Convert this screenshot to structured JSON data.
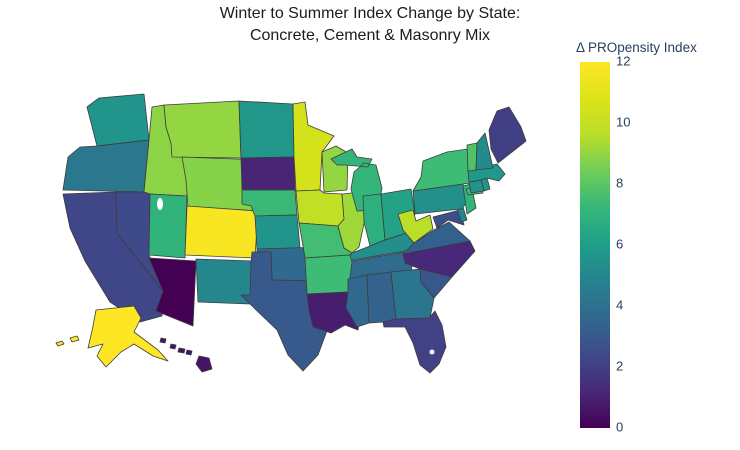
{
  "title": {
    "line1": "Winter to Summer Index Change by State:",
    "line2": "Concrete, Cement & Masonry Mix"
  },
  "colors": {
    "title_text": "#1c1c1c",
    "colorbar_text": "#2a3f5f",
    "state_border": "#3d3d3d",
    "background": "#ffffff"
  },
  "chart_data": {
    "type": "choropleth",
    "region": "USA states (albers projection, AK and HI insets)",
    "colorbar": {
      "title": "Δ PROpensity Index",
      "min": 0,
      "max": 12,
      "ticks": [
        "0",
        "2",
        "4",
        "6",
        "8",
        "10",
        "12"
      ]
    },
    "colorscale_name": "viridis",
    "colorscale": [
      "#440154",
      "#482878",
      "#3e4a89",
      "#31688e",
      "#26828e",
      "#1f9e89",
      "#35b779",
      "#6dcd59",
      "#b8de29",
      "#dde318",
      "#fde725"
    ],
    "states": [
      {
        "abbr": "AL",
        "name": "Alabama",
        "value": 3.4
      },
      {
        "abbr": "AK",
        "name": "Alaska",
        "value": 12
      },
      {
        "abbr": "AZ",
        "name": "Arizona",
        "value": 0
      },
      {
        "abbr": "AR",
        "name": "Arkansas",
        "value": 7.4
      },
      {
        "abbr": "CA",
        "name": "California",
        "value": 2.3
      },
      {
        "abbr": "CO",
        "name": "Colorado",
        "value": 11.8
      },
      {
        "abbr": "CT",
        "name": "Connecticut",
        "value": 5.5
      },
      {
        "abbr": "DE",
        "name": "Delaware",
        "value": 4.8
      },
      {
        "abbr": "FL",
        "name": "Florida",
        "value": 2.1
      },
      {
        "abbr": "GA",
        "name": "Georgia",
        "value": 4.2
      },
      {
        "abbr": "HI",
        "name": "Hawaii",
        "value": 0.6
      },
      {
        "abbr": "ID",
        "name": "Idaho",
        "value": 8.9
      },
      {
        "abbr": "IL",
        "name": "Illinois",
        "value": 9.2
      },
      {
        "abbr": "IN",
        "name": "Indiana",
        "value": 6.8
      },
      {
        "abbr": "IA",
        "name": "Iowa",
        "value": 9.9
      },
      {
        "abbr": "KS",
        "name": "Kansas",
        "value": 5.6
      },
      {
        "abbr": "KY",
        "name": "Kentucky",
        "value": 5.3
      },
      {
        "abbr": "LA",
        "name": "Louisiana",
        "value": 0.9
      },
      {
        "abbr": "ME",
        "name": "Maine",
        "value": 2.0
      },
      {
        "abbr": "MD",
        "name": "Maryland",
        "value": 2.6
      },
      {
        "abbr": "MA",
        "name": "Massachusetts",
        "value": 5.8
      },
      {
        "abbr": "MI",
        "name": "Michigan",
        "value": 7.1
      },
      {
        "abbr": "MN",
        "name": "Minnesota",
        "value": 10.5
      },
      {
        "abbr": "MS",
        "name": "Mississippi",
        "value": 3.6
      },
      {
        "abbr": "MO",
        "name": "Missouri",
        "value": 7.5
      },
      {
        "abbr": "MT",
        "name": "Montana",
        "value": 9.0
      },
      {
        "abbr": "NE",
        "name": "Nebraska",
        "value": 7.3
      },
      {
        "abbr": "NV",
        "name": "Nevada",
        "value": 2.4
      },
      {
        "abbr": "NH",
        "name": "New Hampshire",
        "value": 5.2
      },
      {
        "abbr": "NJ",
        "name": "New Jersey",
        "value": 7.0
      },
      {
        "abbr": "NM",
        "name": "New Mexico",
        "value": 5.0
      },
      {
        "abbr": "NY",
        "name": "New York",
        "value": 7.4
      },
      {
        "abbr": "NC",
        "name": "North Carolina",
        "value": 1.2
      },
      {
        "abbr": "ND",
        "name": "North Dakota",
        "value": 5.7
      },
      {
        "abbr": "OH",
        "name": "Ohio",
        "value": 6.2
      },
      {
        "abbr": "OK",
        "name": "Oklahoma",
        "value": 3.7
      },
      {
        "abbr": "OR",
        "name": "Oregon",
        "value": 4.3
      },
      {
        "abbr": "PA",
        "name": "Pennsylvania",
        "value": 5.4
      },
      {
        "abbr": "RI",
        "name": "Rhode Island",
        "value": 5.5
      },
      {
        "abbr": "SC",
        "name": "South Carolina",
        "value": 2.9
      },
      {
        "abbr": "SD",
        "name": "South Dakota",
        "value": 1.1
      },
      {
        "abbr": "TN",
        "name": "Tennessee",
        "value": 3.8
      },
      {
        "abbr": "TX",
        "name": "Texas",
        "value": 3.0
      },
      {
        "abbr": "UT",
        "name": "Utah",
        "value": 7.0
      },
      {
        "abbr": "VT",
        "name": "Vermont",
        "value": 7.8
      },
      {
        "abbr": "VA",
        "name": "Virginia",
        "value": 3.3
      },
      {
        "abbr": "WA",
        "name": "Washington",
        "value": 5.6
      },
      {
        "abbr": "WV",
        "name": "West Virginia",
        "value": 9.7
      },
      {
        "abbr": "WI",
        "name": "Wisconsin",
        "value": 9.0
      },
      {
        "abbr": "WY",
        "name": "Wyoming",
        "value": 8.8
      }
    ]
  }
}
